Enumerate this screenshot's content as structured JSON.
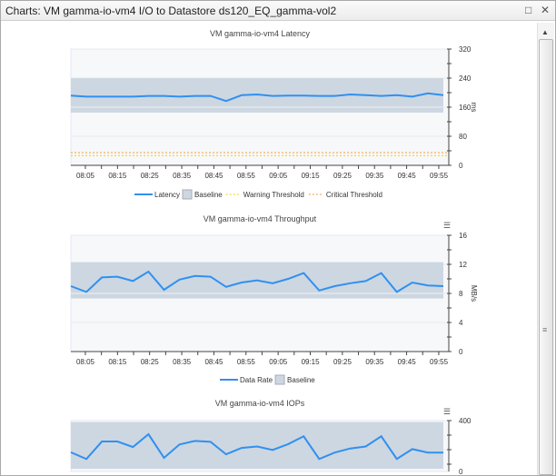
{
  "window": {
    "title": "Charts: VM gamma-io-vm4 I/O to Datastore ds120_EQ_gamma-vol2",
    "maximize_icon": "□",
    "close_icon": "✕"
  },
  "colors": {
    "line": "#3090f0",
    "baseline": "#cdd7e1",
    "warning": "#f5d000",
    "critical": "#f59a3a",
    "plot_bg": "#f7f8fa"
  },
  "chart_data": [
    {
      "type": "line",
      "title": "VM gamma-io-vm4 Latency",
      "ylabel": "ms",
      "ylim": [
        0,
        320
      ],
      "yticks": [
        "0",
        "80",
        "160",
        "240",
        "320"
      ],
      "xticks": [
        "08:05",
        "08:15",
        "08:25",
        "08:35",
        "08:45",
        "08:55",
        "09:05",
        "09:15",
        "09:25",
        "09:35",
        "09:45",
        "09:55"
      ],
      "series": [
        {
          "name": "Latency",
          "values": [
            192,
            189,
            189,
            189,
            189,
            191,
            191,
            189,
            191,
            191,
            177,
            193,
            195,
            191,
            192,
            192,
            191,
            191,
            195,
            193,
            191,
            193,
            189,
            198,
            193
          ]
        }
      ],
      "baseline": {
        "name": "Baseline",
        "low": 145,
        "high": 240
      },
      "thresholds": [
        {
          "name": "Warning Threshold",
          "value": 27
        },
        {
          "name": "Critical Threshold",
          "value": 35
        }
      ],
      "legend": "bottom"
    },
    {
      "type": "line",
      "title": "VM gamma-io-vm4 Throughput",
      "ylabel": "MB/s",
      "ylim": [
        0,
        16
      ],
      "yticks": [
        "0",
        "4",
        "8",
        "12",
        "16"
      ],
      "xticks": [
        "08:05",
        "08:15",
        "08:25",
        "08:35",
        "08:45",
        "08:55",
        "09:05",
        "09:15",
        "09:25",
        "09:35",
        "09:45",
        "09:55"
      ],
      "series": [
        {
          "name": "Data Rate",
          "values": [
            9.0,
            8.2,
            10.2,
            10.3,
            9.7,
            11.0,
            8.5,
            9.9,
            10.4,
            10.3,
            8.9,
            9.5,
            9.8,
            9.4,
            10.0,
            10.8,
            8.4,
            9.0,
            9.4,
            9.7,
            10.8,
            8.2,
            9.5,
            9.1,
            9.0
          ]
        }
      ],
      "baseline": {
        "name": "Baseline",
        "low": 7.3,
        "high": 12.3
      },
      "legend": "bottom"
    },
    {
      "type": "line",
      "title": "VM gamma-io-vm4 IOPs",
      "ylim": [
        0,
        400
      ],
      "yticks": [
        "0",
        "400"
      ],
      "series": [
        {
          "values": [
            291,
            268,
            328,
            328,
            309,
            353,
            272,
            318,
            330,
            327,
            284,
            306,
            311,
            299,
            319,
            346,
            268,
            290,
            304,
            311,
            346,
            268,
            302,
            290,
            290
          ]
        }
      ],
      "baseline": {
        "low": 234,
        "high": 395
      }
    }
  ]
}
